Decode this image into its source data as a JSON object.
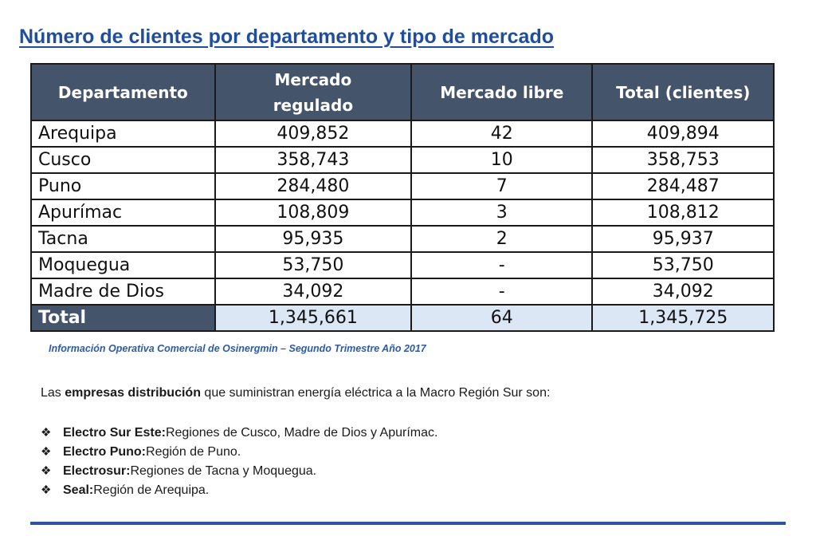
{
  "title": "Número de clientes por departamento y tipo de mercado",
  "table": {
    "headers": {
      "departamento": "Departamento",
      "regulado_line1": "Mercado",
      "regulado_line2": "regulado",
      "libre": "Mercado libre",
      "total": "Total (clientes)"
    },
    "rows": [
      {
        "dept": "Arequipa",
        "regulado": "409,852",
        "libre": "42",
        "total": "409,894"
      },
      {
        "dept": "Cusco",
        "regulado": "358,743",
        "libre": "10",
        "total": "358,753"
      },
      {
        "dept": "Puno",
        "regulado": "284,480",
        "libre": "7",
        "total": "284,487"
      },
      {
        "dept": "Apurímac",
        "regulado": "108,809",
        "libre": "3",
        "total": "108,812"
      },
      {
        "dept": "Tacna",
        "regulado": "95,935",
        "libre": "2",
        "total": "95,937"
      },
      {
        "dept": "Moquegua",
        "regulado": "53,750",
        "libre": "-",
        "total": "53,750"
      },
      {
        "dept": "Madre de Dios",
        "regulado": "34,092",
        "libre": "-",
        "total": "34,092"
      }
    ],
    "total_row": {
      "dept": "Total",
      "regulado": "1,345,661",
      "libre": "64",
      "total": "1,345,725"
    }
  },
  "source_note": "Información Operativa Comercial de Osinergmin – Segundo Trimestre Año 2017",
  "intro": {
    "before": "Las ",
    "bold": "empresas distribución",
    "after": " que suministran energía eléctrica a la Macro Región Sur son:"
  },
  "bullet_icon": "diamond-bullet-icon",
  "companies": [
    {
      "name": "Electro Sur Este:",
      "desc": " Regiones de Cusco, Madre de Dios y Apurímac."
    },
    {
      "name": "Electro Puno:",
      "desc": " Región de Puno."
    },
    {
      "name": "Electrosur:",
      "desc": " Regiones de Tacna y Moquegua."
    },
    {
      "name": "Seal:",
      "desc": " Región de Arequipa."
    }
  ],
  "colors": {
    "title": "#1f4e9c",
    "header_bg": "#44546a",
    "total_bg": "#dbe7f5",
    "accent_line": "#2a55a3"
  }
}
